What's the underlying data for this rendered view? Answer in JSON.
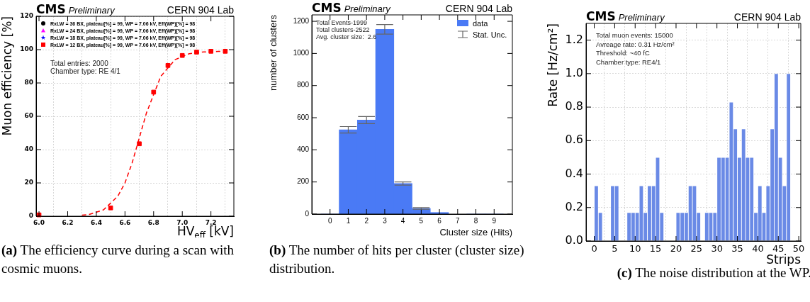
{
  "chart_data": [
    {
      "type": "scatter",
      "title": "CMS",
      "subtitle": "Preliminary",
      "xlabel": "HV$_{eff}$ [kV]",
      "ylabel": "Muon efficiency [%]",
      "legend": "top left",
      "grid": true,
      "x": [
        6.0,
        6.5,
        6.7,
        6.8,
        6.9,
        7.0,
        7.1,
        7.2,
        7.3
      ],
      "xlim": [
        5.98,
        7.36
      ],
      "xticks": [
        {
          "value": 6,
          "label": "6.0"
        },
        6.2,
        6.4,
        6.6,
        6.8,
        {
          "value": 7,
          "label": "7.0"
        },
        7.2
      ],
      "ylim": [
        0,
        120
      ],
      "yticks": [
        0,
        20,
        40,
        60,
        80,
        100,
        120
      ],
      "series": [
        {
          "type": "line",
          "color": "#ff0000",
          "line_style": "dashed",
          "marker": "none",
          "x": [
            6.3,
            6.35,
            6.45,
            6.55,
            6.6,
            6.65,
            6.75,
            6.85,
            6.95,
            7.05,
            7.15,
            7.25,
            7.28
          ],
          "values": [
            0.6,
            1.1,
            3.8,
            12,
            20,
            32,
            62,
            84,
            94,
            97.6,
            98.6,
            98.9,
            98.9
          ]
        },
        {
          "name": "RxLW = 36 BX, plateau[%] = 99, WP = 7.06 kV, Eff(WP)[%] = 98",
          "color": "#000000",
          "marker": "circle",
          "values": [
            null,
            null,
            null,
            null,
            null,
            null,
            null,
            null,
            null
          ]
        },
        {
          "name": "RxLW = 24 BX, plateau[%] = 99, WP = 7.06 kV, Eff(WP)[%] = 98",
          "color": "#ff00ff",
          "marker": "triangle",
          "values": [
            null,
            null,
            null,
            null,
            null,
            null,
            null,
            null,
            null
          ]
        },
        {
          "name": "RxLW = 18 BX, plateau[%] = 99, WP = 7.06 kV, Eff(WP)[%] = 98",
          "color": "#0000ff",
          "marker": "star",
          "values": [
            null,
            null,
            null,
            null,
            null,
            null,
            null,
            null,
            null
          ]
        },
        {
          "name": "RxLW = 12 BX, plateau[%] = 99, WP = 7.06 kV, Eff(WP)[%] = 98",
          "color": "#ff0000",
          "marker": "square",
          "values": [
            0.8,
            5,
            43.5,
            74.5,
            90.5,
            96.5,
            98.5,
            99,
            99
          ]
        }
      ],
      "annotations": [
        "CERN 904 Lab",
        "Total entries: 2000",
        "Chamber type: RE 4/1",
        "(a) The efficiency curve during a scan with cosmic muons."
      ]
    },
    {
      "type": "histogram",
      "title": "CMS",
      "subtitle": "Preliminary",
      "xlabel": "Cluster size (Hits)",
      "ylabel": "number of clusters",
      "legend": "top right",
      "bins": [
        -0.5,
        0.5,
        1.5,
        2.5,
        3.5,
        4.5,
        5.5,
        6.5,
        7.5,
        8.5,
        9.5
      ],
      "xlim": [
        -1,
        10
      ],
      "xticks": [
        0,
        1,
        2,
        3,
        4,
        5,
        6,
        7,
        8,
        9
      ],
      "ylim": [
        0,
        1240
      ],
      "yticks": [
        0,
        200,
        400,
        600,
        800,
        1000,
        1200
      ],
      "series": [
        {
          "name": "data",
          "color": "#4a7af5",
          "values": [
            0,
            525,
            585,
            1150,
            190,
            35,
            10,
            null,
            0,
            0
          ],
          "errors": [
            null,
            20,
            22,
            30,
            10,
            5,
            null,
            null,
            null,
            null
          ]
        }
      ],
      "annotations": [
        "CERN 904 Lab",
        "Total Events-1999",
        "Total clusters-2522",
        "Avg. cluster size:  2.6",
        "Stat. Unc.",
        "(b) The number of hits per cluster (cluster size) distribution."
      ]
    },
    {
      "type": "histogram",
      "title": "CMS",
      "subtitle": "Preliminary",
      "xlabel": "Strips",
      "ylabel": "Rate [Hz/cm²]",
      "grid": true,
      "bins": [
        0,
        1,
        2,
        3,
        4,
        5,
        6,
        7,
        8,
        9,
        10,
        11,
        12,
        13,
        14,
        15,
        16,
        17,
        18,
        19,
        20,
        21,
        22,
        23,
        24,
        25,
        26,
        27,
        28,
        29,
        30,
        31,
        32,
        33,
        34,
        35,
        36,
        37,
        38,
        39,
        40,
        41,
        42,
        43,
        44,
        45,
        46,
        47,
        48
      ],
      "values": [
        0.33,
        0.17,
        0,
        0,
        0.33,
        0.33,
        0,
        0,
        0.17,
        0.17,
        0.17,
        0.33,
        0.17,
        0.33,
        0.33,
        0.5,
        0.17,
        0,
        0,
        0,
        0.17,
        0.17,
        0.17,
        0.33,
        0.33,
        0.17,
        0,
        0.17,
        0.17,
        0.17,
        0.5,
        0.5,
        0.5,
        0.83,
        0.67,
        0.5,
        0.67,
        0.5,
        0.5,
        0.17,
        0.33,
        0.17,
        0.33,
        0.67,
        1.0,
        0.5,
        0.33,
        1.0
      ],
      "color": "#6a8ae6",
      "xlim": [
        -2,
        50.5
      ],
      "xticks": [
        0,
        5,
        10,
        15,
        20,
        25,
        30,
        35,
        40,
        45,
        50
      ],
      "ylim": [
        0,
        1.3
      ],
      "yticks": [
        {
          "value": 0,
          "label": "0.0"
        },
        0.2,
        0.4,
        0.6,
        0.8,
        {
          "value": 1,
          "label": "1.0"
        },
        1.2
      ],
      "annotations": [
        "CERN 904 Lab",
        "Total muon events: 15000",
        "Avreage rate: 0.31 Hz/cm²",
        "Threshold: ~40 fC",
        "Chamber type: RE4/1",
        "(c) The noise distribution at the WP."
      ]
    }
  ]
}
